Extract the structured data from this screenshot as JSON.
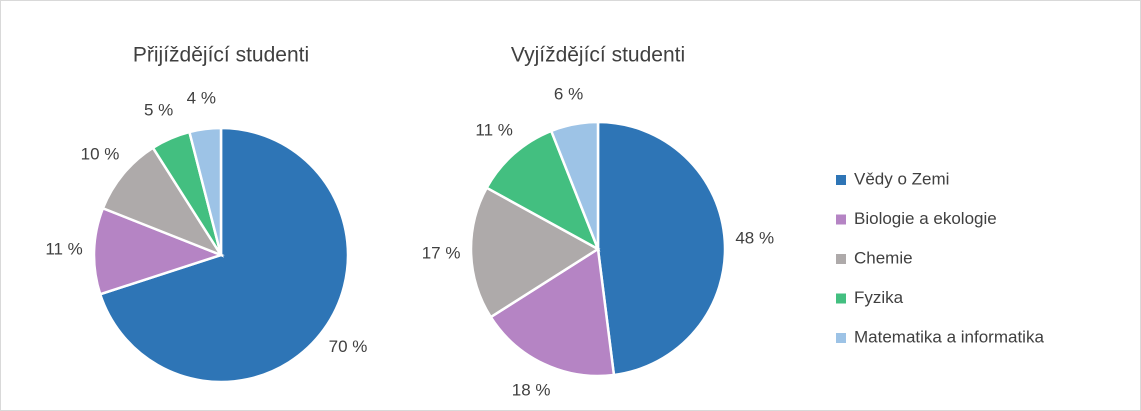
{
  "chart_data": [
    {
      "type": "pie",
      "title": "Přijíždějící studenti",
      "values": [
        70,
        11,
        10,
        5,
        4
      ],
      "value_labels": [
        "70 %",
        "11 %",
        "10 %",
        "5 %",
        "4 %"
      ]
    },
    {
      "type": "pie",
      "title": "Vyjíždějící studenti",
      "values": [
        48,
        18,
        17,
        11,
        6
      ],
      "value_labels": [
        "48 %",
        "18 %",
        "17 %",
        "11 %",
        "6 %"
      ]
    }
  ],
  "legend": {
    "categories": [
      "Vědy o Zemi",
      "Biologie a ekologie",
      "Chemie",
      "Fyzika",
      "Matematika a informatika"
    ],
    "colors": [
      "#2e75b6",
      "#b584c4",
      "#aeaaaa",
      "#43bf80",
      "#9dc3e6"
    ]
  }
}
